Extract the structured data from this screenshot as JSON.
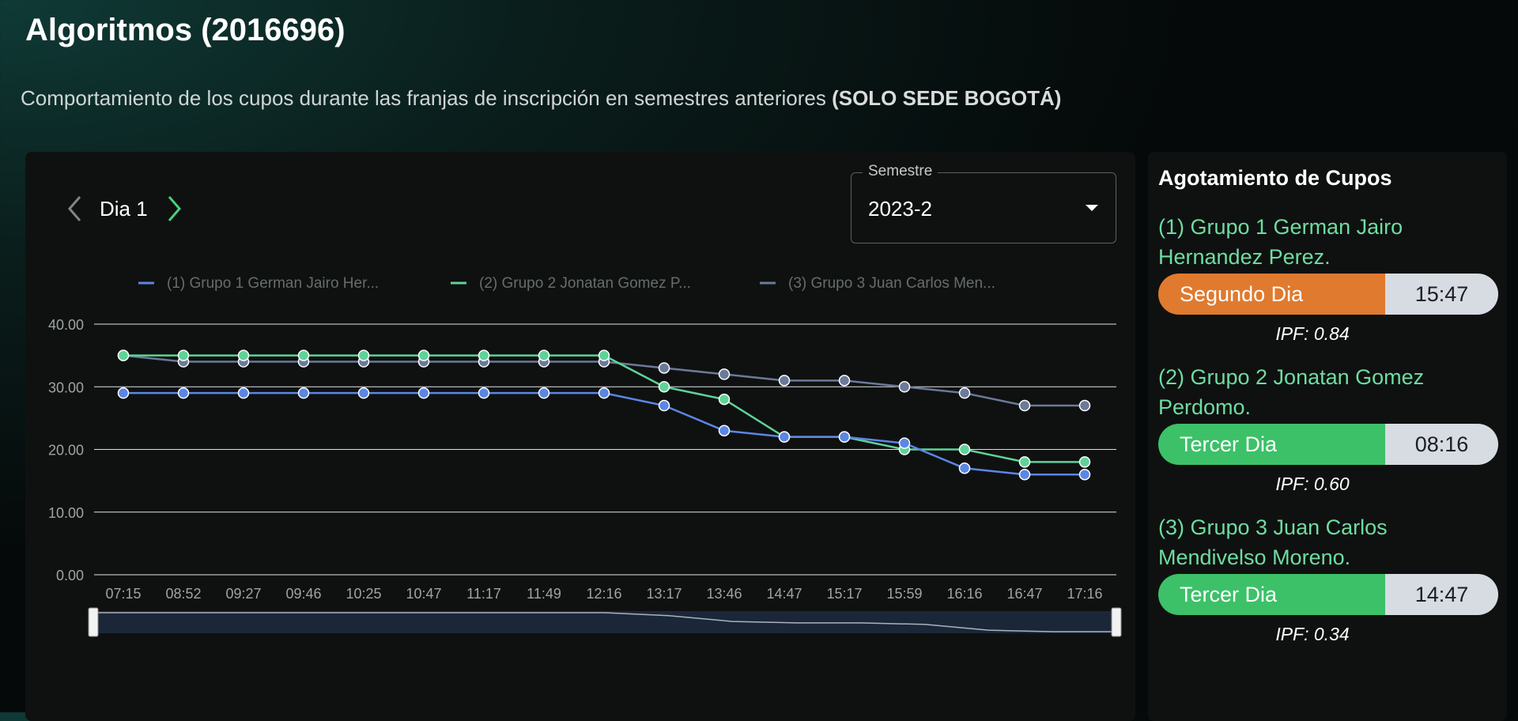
{
  "page": {
    "title": "Algoritmos (2016696)",
    "subtitle_prefix": "Comportamiento de los cupos durante las franjas de inscripción en semestres anteriores ",
    "subtitle_bold": "(SOLO SEDE BOGOTÁ)"
  },
  "controls": {
    "day_label": "Dia 1",
    "semestre_label": "Semestre",
    "semestre_value": "2023-2"
  },
  "colors": {
    "series1": "#5b86e5",
    "series2": "#5fd397",
    "series3": "#6b7a99",
    "orange": "#e07a2f",
    "green": "#3cc168"
  },
  "chart_data": {
    "type": "line",
    "title": "",
    "xlabel": "",
    "ylabel": "",
    "ylim": [
      0,
      40
    ],
    "yticks": [
      "0.00",
      "10.00",
      "20.00",
      "30.00",
      "40.00"
    ],
    "categories": [
      "07:15",
      "08:52",
      "09:27",
      "09:46",
      "10:25",
      "10:47",
      "11:17",
      "11:49",
      "12:16",
      "13:17",
      "13:46",
      "14:47",
      "15:17",
      "15:59",
      "16:16",
      "16:47",
      "17:16"
    ],
    "legend_position": "top",
    "series": [
      {
        "name": "(1) Grupo 1  German Jairo Her...",
        "values": [
          29,
          29,
          29,
          29,
          29,
          29,
          29,
          29,
          29,
          27,
          23,
          22,
          22,
          21,
          17,
          16,
          16
        ]
      },
      {
        "name": "(2) Grupo 2  Jonatan Gomez P...",
        "values": [
          35,
          35,
          35,
          35,
          35,
          35,
          35,
          35,
          35,
          30,
          28,
          22,
          22,
          20,
          20,
          18,
          18
        ]
      },
      {
        "name": "(3) Grupo 3  Juan Carlos Men...",
        "values": [
          35,
          34,
          34,
          34,
          34,
          34,
          34,
          34,
          34,
          33,
          32,
          31,
          31,
          30,
          29,
          27,
          27
        ]
      }
    ]
  },
  "sidebar": {
    "title": "Agotamiento de Cupos",
    "groups": [
      {
        "name": "(1) Grupo 1 German Jairo Hernandez Perez.",
        "day": "Segundo Dia",
        "time": "15:47",
        "ipf": "IPF: 0.84",
        "color": "#e07a2f"
      },
      {
        "name": "(2) Grupo 2 Jonatan Gomez Perdomo.",
        "day": "Tercer Dia",
        "time": "08:16",
        "ipf": "IPF: 0.60",
        "color": "#3cc168"
      },
      {
        "name": "(3) Grupo 3 Juan Carlos Mendivelso Moreno.",
        "day": "Tercer Dia",
        "time": "14:47",
        "ipf": "IPF: 0.34",
        "color": "#3cc168"
      }
    ]
  }
}
